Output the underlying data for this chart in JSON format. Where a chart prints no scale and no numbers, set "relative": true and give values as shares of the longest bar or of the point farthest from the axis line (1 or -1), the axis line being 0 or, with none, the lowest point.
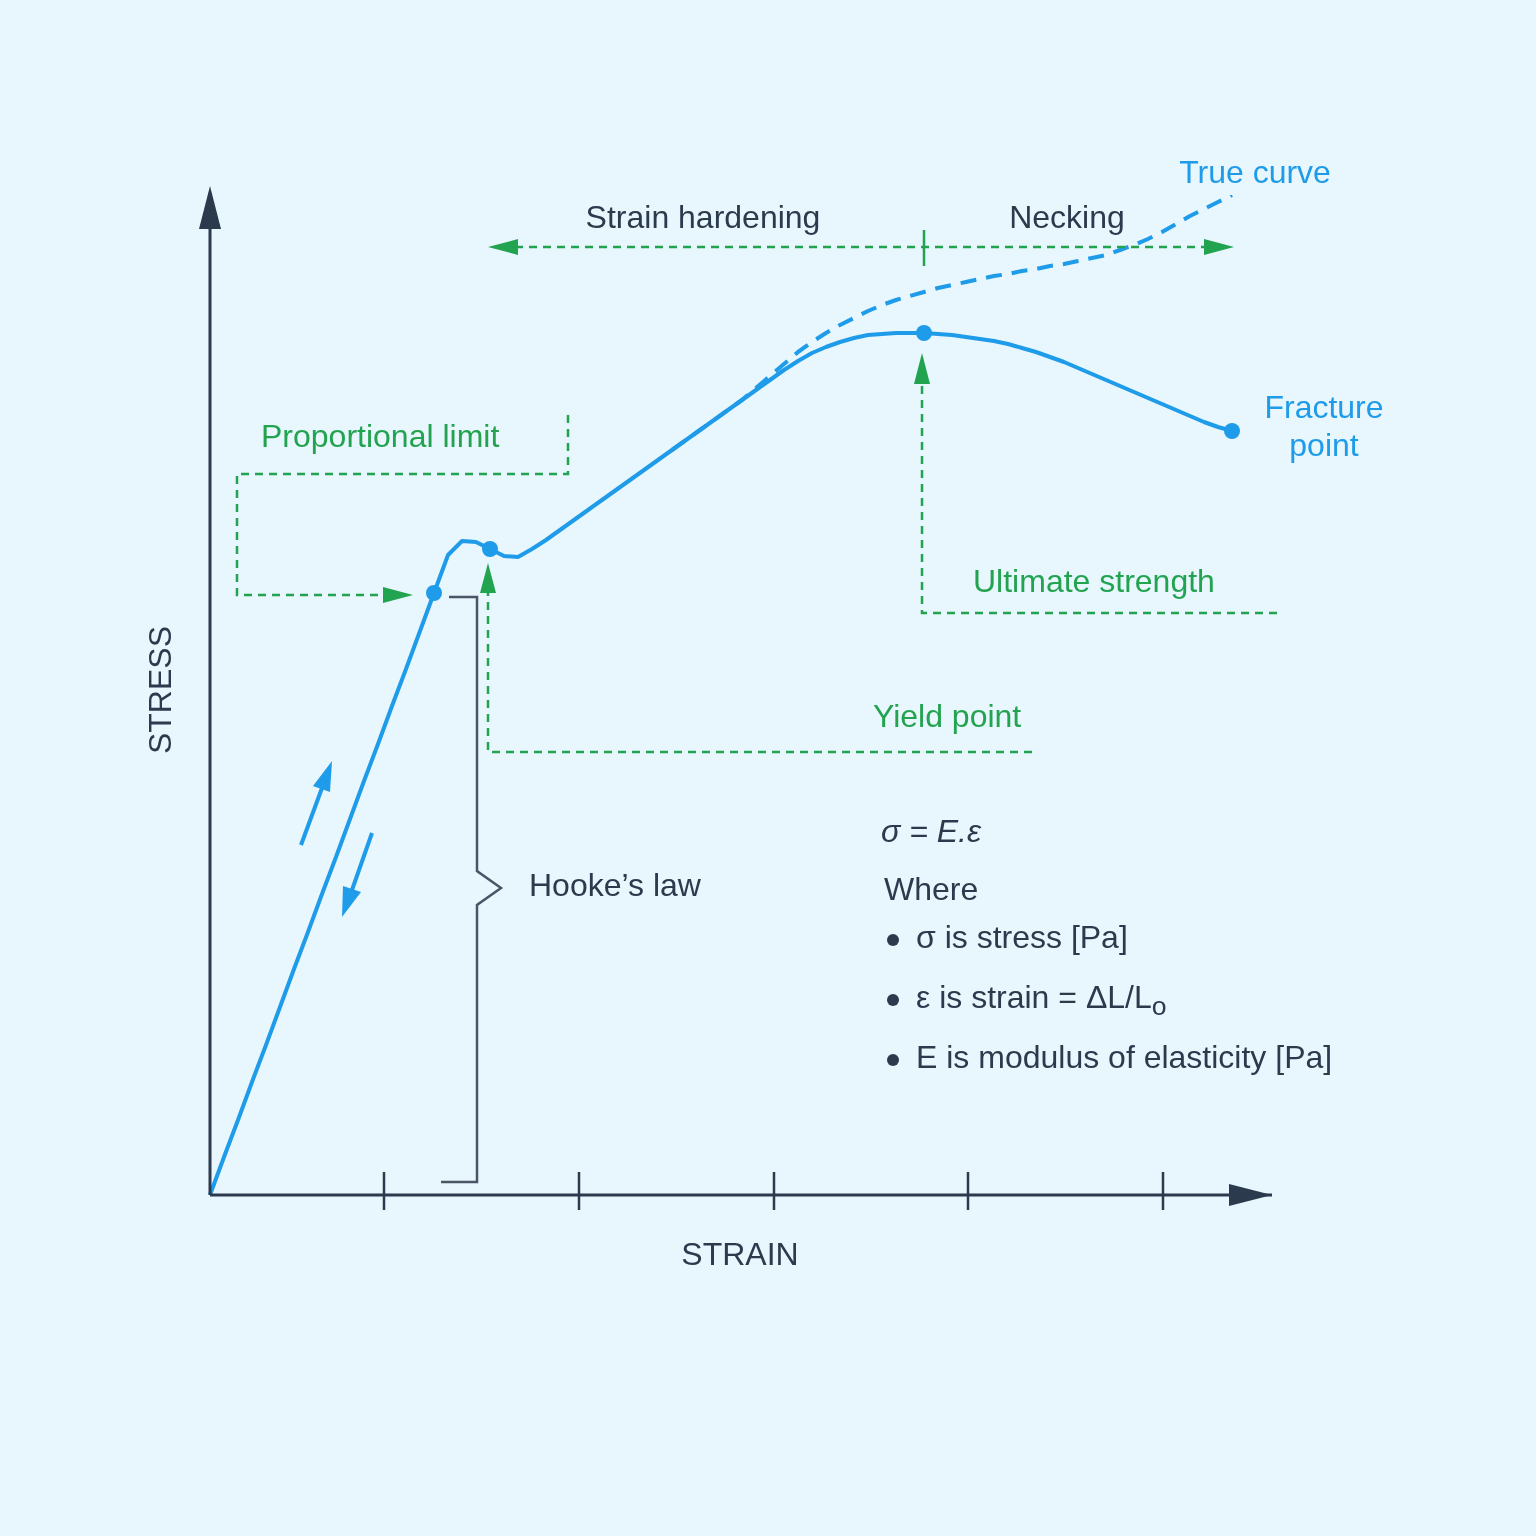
{
  "chart_data": {
    "type": "line",
    "relative": true,
    "xlabel": "STRAIN",
    "ylabel": "STRESS",
    "marker": "none",
    "categories": [
      null,
      null,
      null,
      null,
      null,
      null,
      null,
      null,
      null,
      null,
      null,
      null,
      null,
      null,
      null,
      null,
      null,
      null,
      null,
      null,
      null,
      null,
      null,
      null,
      null,
      null,
      null,
      null,
      null,
      null,
      null,
      null,
      null,
      null,
      null,
      null,
      null,
      null,
      null,
      null,
      null,
      null,
      null,
      null,
      null,
      null,
      null,
      null,
      null,
      null,
      null,
      null,
      null,
      null,
      null,
      null,
      null,
      null,
      null,
      null,
      null,
      null,
      null,
      null,
      null,
      null,
      null,
      null,
      null,
      null,
      null,
      null,
      null,
      null
    ],
    "series": [
      {
        "color": "#1e9be9",
        "line_style": "solid",
        "values": [
          0,
          0.038,
          0.075,
          0.113,
          0.15,
          0.188,
          0.226,
          0.263,
          0.301,
          0.338,
          0.376,
          0.414,
          0.451,
          0.489,
          0.526,
          0.564,
          0.602,
          0.64,
          0.654,
          0.653,
          0.646,
          0.639,
          0.638,
          0.646,
          0.655,
          0.665,
          0.675,
          0.685,
          0.695,
          0.705,
          0.715,
          0.725,
          0.735,
          0.745,
          0.755,
          0.765,
          0.775,
          0.785,
          0.795,
          0.805,
          0.815,
          0.825,
          0.834,
          0.842,
          0.848,
          0.853,
          0.857,
          0.86,
          0.861,
          0.862,
          0.862,
          0.862,
          0.861,
          0.86,
          0.858,
          0.856,
          0.854,
          0.851,
          0.847,
          0.843,
          0.838,
          0.833,
          0.827,
          0.821,
          0.815,
          0.809,
          0.803,
          0.797,
          0.791,
          0.785,
          0.779,
          0.773,
          0.768,
          0.764
        ]
      },
      {
        "name": "True curve",
        "color": "#1e9be9",
        "line_style": "dashed",
        "values": [
          null,
          null,
          null,
          null,
          null,
          null,
          null,
          null,
          null,
          null,
          null,
          null,
          null,
          null,
          null,
          null,
          null,
          null,
          null,
          null,
          null,
          null,
          null,
          null,
          null,
          null,
          null,
          null,
          null,
          null,
          null,
          null,
          null,
          0.745,
          0.755,
          0.765,
          0.775,
          0.785,
          0.795,
          0.807,
          0.819,
          0.831,
          0.843,
          0.853,
          0.862,
          0.87,
          0.877,
          0.884,
          0.89,
          0.895,
          0.899,
          0.903,
          0.907,
          0.91,
          0.913,
          0.916,
          0.919,
          0.921,
          0.924,
          0.926,
          0.929,
          0.931,
          0.934,
          0.937,
          0.94,
          0.945,
          0.95,
          0.956,
          0.963,
          0.971,
          0.979,
          0.986,
          0.993,
          1.0
        ]
      },
      {
        "marker": "circle",
        "color": "#1e9be9",
        "values": [
          null,
          null,
          null,
          null,
          null,
          null,
          null,
          null,
          null,
          null,
          null,
          null,
          null,
          null,
          null,
          null,
          0.602,
          null,
          null,
          null,
          0.646,
          null,
          null,
          null,
          null,
          null,
          null,
          null,
          null,
          null,
          null,
          null,
          null,
          null,
          null,
          null,
          null,
          null,
          null,
          null,
          null,
          null,
          null,
          null,
          null,
          null,
          null,
          null,
          null,
          null,
          null,
          0.862,
          null,
          null,
          null,
          null,
          null,
          null,
          null,
          null,
          null,
          null,
          null,
          null,
          null,
          null,
          null,
          null,
          null,
          null,
          null,
          null,
          null,
          0.764
        ]
      }
    ],
    "annotations": [
      "Strain hardening",
      "Necking",
      "Fracture point",
      "Proportional limit",
      "Ultimate strength",
      "Yield point",
      "Hooke’s law",
      "σ = E.ε",
      "Where",
      "σ is stress [Pa]",
      "ε is strain = ΔL/L$_{o}$",
      "E is modulus of elasticity [Pa]"
    ]
  }
}
